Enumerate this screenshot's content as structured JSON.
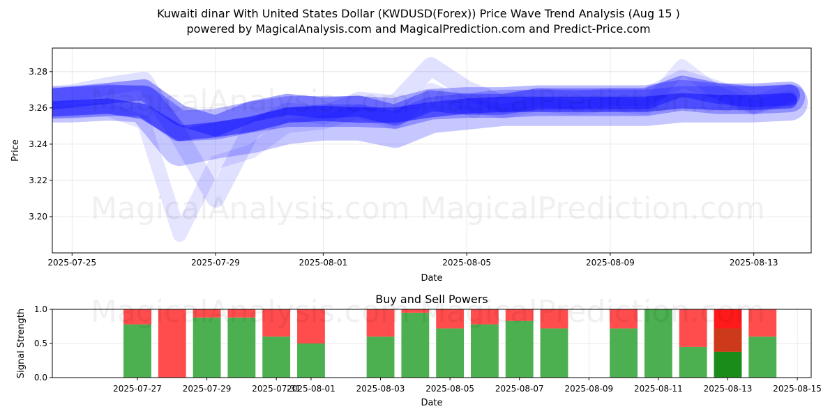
{
  "header": {
    "title": "Kuwaiti dinar With United States Dollar (KWDUSD(Forex)) Price Wave Trend Analysis (Aug 15 )",
    "subtitle": "powered by MagicalAnalysis.com and MagicalPrediction.com and Predict-Price.com"
  },
  "watermarks": [
    "MagicalAnalysis.com",
    "MagicalPrediction.com"
  ],
  "colors": {
    "wave": "#0000ff",
    "buy": "#4caf50",
    "sell": "#ff4c4c",
    "buy_strong": "#1a8c1a",
    "sell_strong": "#ff1a1a",
    "mixed": "#cc3a1a"
  },
  "chart_data": [
    {
      "type": "area",
      "title": "",
      "xlabel": "Date",
      "ylabel": "Price",
      "xlim": [
        "2025-07-24",
        "2025-08-15"
      ],
      "ylim": [
        3.18,
        3.293
      ],
      "x_ticks": [
        "2025-07-25",
        "2025-07-29",
        "2025-08-01",
        "2025-08-05",
        "2025-08-09",
        "2025-08-13"
      ],
      "y_ticks": [
        "3.20",
        "3.22",
        "3.24",
        "3.26",
        "3.28"
      ],
      "grid": true,
      "x": [
        "2025-07-24",
        "2025-07-25",
        "2025-07-26",
        "2025-07-27",
        "2025-07-28",
        "2025-07-29",
        "2025-07-30",
        "2025-07-31",
        "2025-08-01",
        "2025-08-02",
        "2025-08-03",
        "2025-08-04",
        "2025-08-05",
        "2025-08-06",
        "2025-08-07",
        "2025-08-08",
        "2025-08-09",
        "2025-08-10",
        "2025-08-11",
        "2025-08-12",
        "2025-08-13",
        "2025-08-14"
      ],
      "series": [
        {
          "values": [
            3.262,
            3.263,
            3.264,
            3.264,
            3.25,
            3.251,
            3.255,
            3.258,
            3.258,
            3.258,
            3.257,
            3.262,
            3.263,
            3.263,
            3.264,
            3.264,
            3.264,
            3.264,
            3.267,
            3.265,
            3.265,
            3.266
          ]
        },
        {
          "values": [
            3.264,
            3.266,
            3.268,
            3.27,
            3.256,
            3.25,
            3.258,
            3.262,
            3.26,
            3.261,
            3.256,
            3.264,
            3.262,
            3.262,
            3.265,
            3.265,
            3.265,
            3.265,
            3.272,
            3.268,
            3.266,
            3.267
          ]
        },
        {
          "values": [
            3.259,
            3.26,
            3.261,
            3.258,
            3.246,
            3.248,
            3.251,
            3.256,
            3.257,
            3.256,
            3.256,
            3.259,
            3.261,
            3.262,
            3.262,
            3.262,
            3.262,
            3.262,
            3.264,
            3.263,
            3.263,
            3.264
          ]
        },
        {
          "values": [
            3.266,
            3.268,
            3.272,
            3.275,
            3.244,
            3.21,
            3.248,
            3.258,
            3.256,
            3.264,
            3.262,
            3.283,
            3.27,
            3.262,
            3.266,
            3.264,
            3.266,
            3.266,
            3.276,
            3.27,
            3.262,
            3.268
          ]
        },
        {
          "values": [
            3.258,
            3.258,
            3.259,
            3.252,
            3.19,
            3.23,
            3.236,
            3.25,
            3.252,
            3.258,
            3.252,
            3.27,
            3.262,
            3.258,
            3.262,
            3.26,
            3.262,
            3.26,
            3.283,
            3.268,
            3.26,
            3.266
          ]
        },
        {
          "values": [
            3.262,
            3.262,
            3.263,
            3.262,
            3.238,
            3.242,
            3.245,
            3.25,
            3.252,
            3.252,
            3.248,
            3.256,
            3.258,
            3.26,
            3.26,
            3.26,
            3.26,
            3.26,
            3.262,
            3.262,
            3.262,
            3.263
          ]
        }
      ]
    },
    {
      "type": "bar",
      "title": "Buy and Sell Powers",
      "xlabel": "Date",
      "ylabel": "Signal Strength",
      "xlim": [
        "2025-07-25",
        "2025-08-15"
      ],
      "ylim": [
        0,
        1.0
      ],
      "x_ticks": [
        "2025-07-27",
        "2025-07-29",
        "2025-07-31",
        "2025-08-01",
        "2025-08-03",
        "2025-08-05",
        "2025-08-07",
        "2025-08-09",
        "2025-08-11",
        "2025-08-13",
        "2025-08-15"
      ],
      "y_ticks": [
        "0.0",
        "0.5",
        "1.0"
      ],
      "grid": true,
      "categories": [
        "2025-07-27",
        "2025-07-28",
        "2025-07-29",
        "2025-07-30",
        "2025-07-31",
        "2025-08-01",
        "2025-08-03",
        "2025-08-04",
        "2025-08-05",
        "2025-08-06",
        "2025-08-07",
        "2025-08-08",
        "2025-08-10",
        "2025-08-11",
        "2025-08-12",
        "2025-08-13",
        "2025-08-14"
      ],
      "series": [
        {
          "name": "Buy",
          "values": [
            0.78,
            0.0,
            0.88,
            0.88,
            0.6,
            0.5,
            0.6,
            0.95,
            0.72,
            0.78,
            0.83,
            0.72,
            0.72,
            1.0,
            0.45,
            0.38,
            0.6
          ]
        },
        {
          "name": "Sell",
          "values": [
            0.22,
            1.0,
            0.12,
            0.12,
            0.4,
            0.5,
            0.4,
            0.05,
            0.28,
            0.22,
            0.17,
            0.28,
            0.28,
            0.0,
            0.55,
            0.62,
            0.4
          ]
        }
      ]
    }
  ]
}
